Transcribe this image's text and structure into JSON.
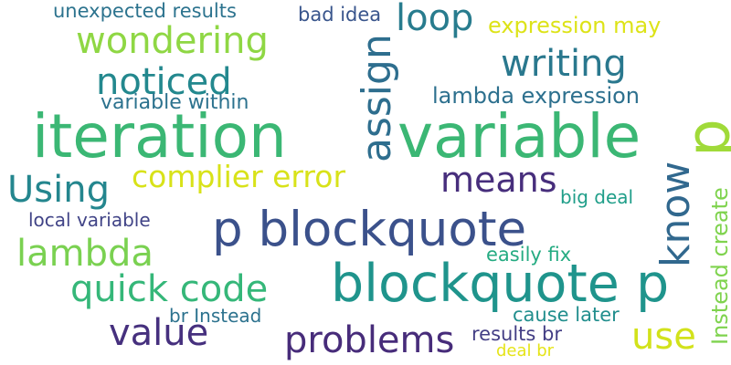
{
  "colors": {
    "background": "#ffffff",
    "palette": [
      "#440154",
      "#3b528b",
      "#21918c",
      "#5ec962",
      "#fde725"
    ]
  },
  "words": [
    {
      "text": "iteration",
      "color": "#3bb774"
    },
    {
      "text": "variable",
      "color": "#3bb774"
    },
    {
      "text": "p blockquote",
      "color": "#3b518b"
    },
    {
      "text": "blockquote p",
      "color": "#1f948c"
    },
    {
      "text": "wondering",
      "color": "#8fd744"
    },
    {
      "text": "noticed",
      "color": "#23888e"
    },
    {
      "text": "writing",
      "color": "#2a788e"
    },
    {
      "text": "loop",
      "color": "#287c8e"
    },
    {
      "text": "complier error",
      "color": "#d8e219"
    },
    {
      "text": "Using",
      "color": "#24868e"
    },
    {
      "text": "means",
      "color": "#472e7c"
    },
    {
      "text": "lambda",
      "color": "#7ad151"
    },
    {
      "text": "quick code",
      "color": "#35b779"
    },
    {
      "text": "value",
      "color": "#46307e"
    },
    {
      "text": "problems",
      "color": "#472c7a"
    },
    {
      "text": "use",
      "color": "#d2e21b"
    },
    {
      "text": "unexpected results",
      "color": "#2c738e"
    },
    {
      "text": "bad idea",
      "color": "#39558c"
    },
    {
      "text": "expression may",
      "color": "#dde318"
    },
    {
      "text": "lambda expression",
      "color": "#2d708e"
    },
    {
      "text": "variable within",
      "color": "#2c728e"
    },
    {
      "text": "big deal",
      "color": "#1f9e89"
    },
    {
      "text": "local variable",
      "color": "#414487"
    },
    {
      "text": "easily fix",
      "color": "#25ab82"
    },
    {
      "text": "br Instead",
      "color": "#2c728e"
    },
    {
      "text": "cause later",
      "color": "#218e8d"
    },
    {
      "text": "results br",
      "color": "#433e85"
    },
    {
      "text": "deal br",
      "color": "#e5e419"
    },
    {
      "text": "assign",
      "color": "#2e6e8e"
    },
    {
      "text": "know",
      "color": "#31688e"
    },
    {
      "text": "Instead create",
      "color": "#7fd34e"
    },
    {
      "text": "p",
      "color": "#a0da39"
    }
  ]
}
